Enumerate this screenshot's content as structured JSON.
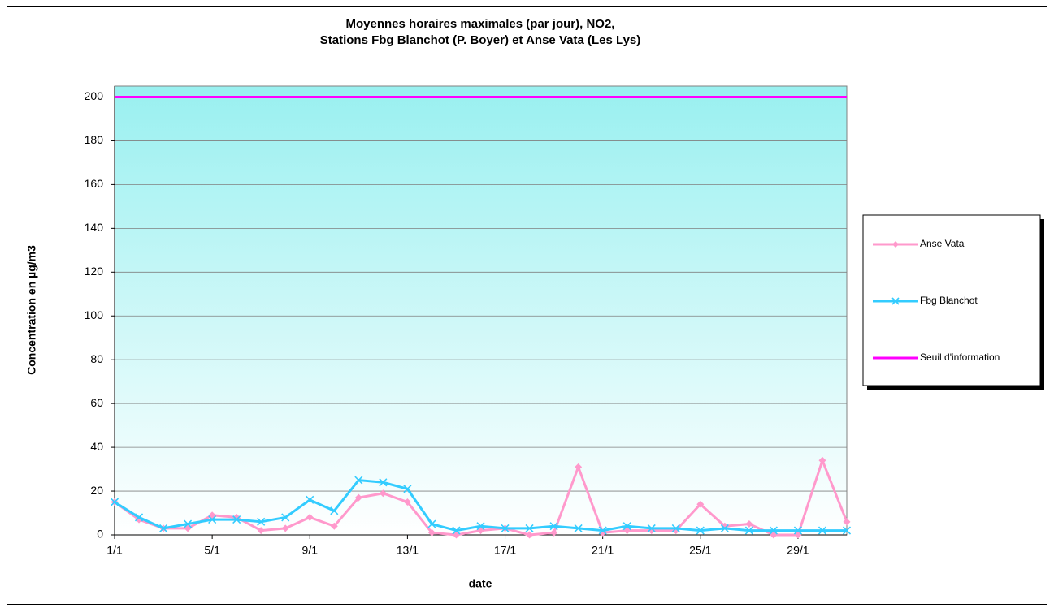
{
  "chart_data": {
    "type": "line",
    "title": [
      "Moyennes horaires maximales (par jour), NO2,",
      "Stations Fbg Blanchot (P. Boyer) et Anse Vata (Les Lys)"
    ],
    "x_label": "date",
    "y_label": "Concentration en µg/m3",
    "categories": [
      "1/1",
      null,
      null,
      null,
      "5/1",
      null,
      null,
      null,
      "9/1",
      null,
      null,
      null,
      "13/1",
      null,
      null,
      null,
      "17/1",
      null,
      null,
      null,
      "21/1",
      null,
      null,
      null,
      "25/1",
      null,
      null,
      null,
      "29/1",
      null,
      null
    ],
    "series": [
      {
        "name": "Anse Vata",
        "color": "#ff99cc",
        "marker": "diamond",
        "values": [
          15,
          7,
          3,
          3,
          9,
          8,
          2,
          3,
          8,
          4,
          17,
          19,
          15,
          1,
          0,
          2,
          3,
          0,
          1,
          31,
          1,
          2,
          2,
          2,
          14,
          4,
          5,
          0,
          0,
          34,
          6
        ]
      },
      {
        "name": "Fbg Blanchot",
        "color": "#33ccff",
        "marker": "x",
        "values": [
          15,
          8,
          3,
          5,
          7,
          7,
          6,
          8,
          16,
          11,
          25,
          24,
          21,
          5,
          2,
          4,
          3,
          3,
          4,
          3,
          2,
          4,
          3,
          3,
          2,
          3,
          2,
          2,
          2,
          2,
          2
        ]
      },
      {
        "name": "Seuil d'information",
        "color": "#ff00ff",
        "marker": "none",
        "values": [
          200,
          200,
          200,
          200,
          200,
          200,
          200,
          200,
          200,
          200,
          200,
          200,
          200,
          200,
          200,
          200,
          200,
          200,
          200,
          200,
          200,
          200,
          200,
          200,
          200,
          200,
          200,
          200,
          200,
          200,
          200
        ]
      }
    ],
    "ylim": [
      0,
      205
    ],
    "yticks": [
      0,
      20,
      40,
      60,
      80,
      100,
      120,
      140,
      160,
      180,
      200
    ],
    "grid": true,
    "legend": "right"
  }
}
